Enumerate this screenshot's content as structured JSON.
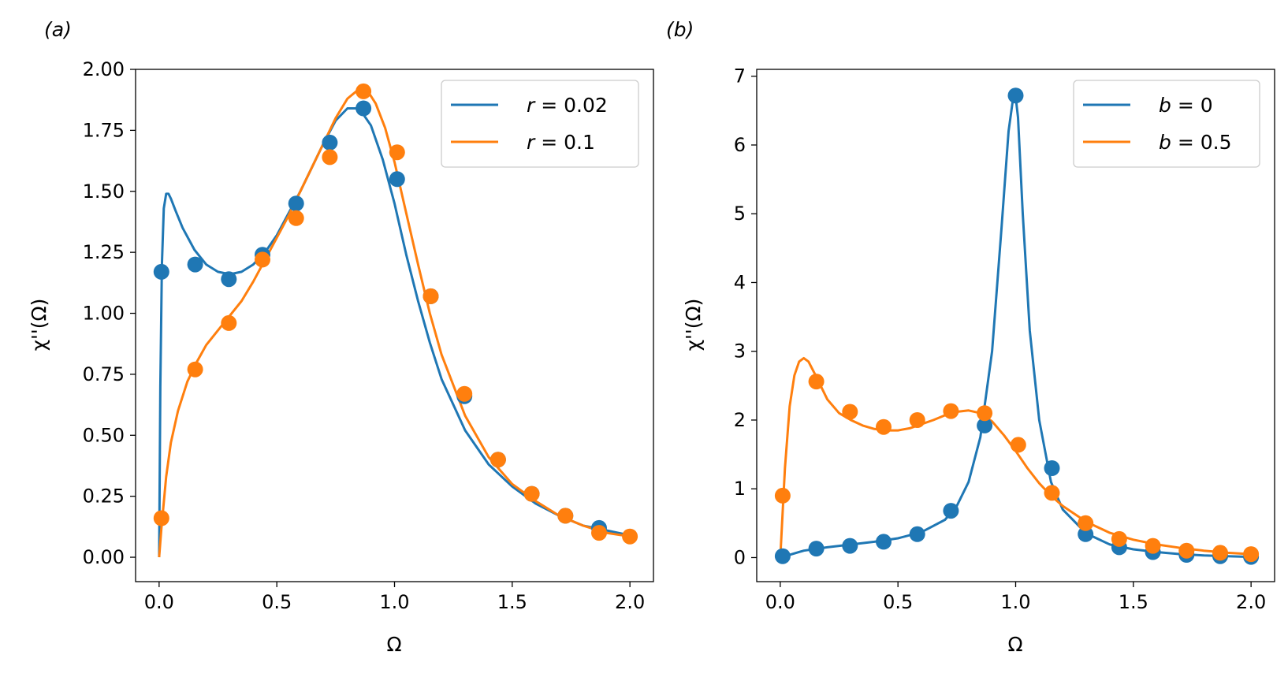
{
  "figure": {
    "chart_data": [
      {
        "panel_label": "(a)",
        "type": "line+scatter",
        "xlabel": "Ω",
        "ylabel": "χ''(Ω)",
        "xlim": [
          -0.1,
          2.1
        ],
        "ylim": [
          -0.1,
          2.0
        ],
        "xticks": [
          0.0,
          0.5,
          1.0,
          1.5,
          2.0
        ],
        "xtick_labels": [
          "0.0",
          "0.5",
          "1.0",
          "1.5",
          "2.0"
        ],
        "yticks": [
          0.0,
          0.25,
          0.5,
          0.75,
          1.0,
          1.25,
          1.5,
          1.75,
          2.0
        ],
        "ytick_labels": [
          "0.00",
          "0.25",
          "0.50",
          "0.75",
          "1.00",
          "1.25",
          "1.50",
          "1.75",
          "2.00"
        ],
        "legend_position": "top-right",
        "series": [
          {
            "name": "r = 0.02",
            "legend_var": "r",
            "legend_val": "0.02",
            "color": "#1f77b4",
            "line": {
              "x": [
                0.0,
                0.005,
                0.012,
                0.02,
                0.03,
                0.04,
                0.05,
                0.07,
                0.1,
                0.15,
                0.2,
                0.25,
                0.3,
                0.35,
                0.4,
                0.45,
                0.5,
                0.55,
                0.6,
                0.65,
                0.7,
                0.75,
                0.8,
                0.85,
                0.9,
                0.95,
                1.0,
                1.05,
                1.1,
                1.15,
                1.2,
                1.3,
                1.4,
                1.5,
                1.6,
                1.7,
                1.8,
                1.9,
                2.0
              ],
              "y": [
                0.0,
                0.7,
                1.2,
                1.43,
                1.49,
                1.49,
                1.47,
                1.42,
                1.35,
                1.26,
                1.2,
                1.17,
                1.16,
                1.17,
                1.2,
                1.25,
                1.32,
                1.41,
                1.5,
                1.6,
                1.7,
                1.79,
                1.84,
                1.84,
                1.77,
                1.63,
                1.45,
                1.24,
                1.05,
                0.88,
                0.73,
                0.52,
                0.38,
                0.29,
                0.22,
                0.17,
                0.13,
                0.11,
                0.09
              ]
            },
            "points": {
              "x": [
                0.01,
                0.153,
                0.296,
                0.439,
                0.582,
                0.725,
                0.868,
                1.011,
                1.154,
                1.297,
                1.44,
                1.583,
                1.726,
                1.869
              ],
              "y": [
                1.17,
                1.2,
                1.14,
                1.24,
                1.45,
                1.7,
                1.84,
                1.55,
                1.07,
                0.66,
                0.4,
                0.26,
                0.17,
                0.12
              ]
            }
          },
          {
            "name": "r = 0.1",
            "legend_var": "r",
            "legend_val": "0.1",
            "color": "#ff7f0e",
            "line": {
              "x": [
                0.0,
                0.01,
                0.03,
                0.05,
                0.08,
                0.12,
                0.16,
                0.2,
                0.25,
                0.3,
                0.35,
                0.4,
                0.45,
                0.5,
                0.55,
                0.6,
                0.65,
                0.7,
                0.75,
                0.8,
                0.85,
                0.88,
                0.92,
                0.96,
                1.0,
                1.05,
                1.1,
                1.15,
                1.2,
                1.3,
                1.4,
                1.5,
                1.6,
                1.7,
                1.8,
                1.9,
                2.0
              ],
              "y": [
                0.0,
                0.12,
                0.33,
                0.47,
                0.6,
                0.72,
                0.8,
                0.87,
                0.93,
                0.99,
                1.05,
                1.13,
                1.22,
                1.31,
                1.4,
                1.5,
                1.6,
                1.7,
                1.8,
                1.88,
                1.92,
                1.92,
                1.86,
                1.76,
                1.62,
                1.41,
                1.2,
                1.0,
                0.83,
                0.58,
                0.41,
                0.3,
                0.23,
                0.17,
                0.13,
                0.1,
                0.085
              ]
            },
            "points": {
              "x": [
                0.01,
                0.153,
                0.296,
                0.439,
                0.582,
                0.725,
                0.868,
                1.011,
                1.154,
                1.297,
                1.44,
                1.583,
                1.726,
                1.869,
                2.0
              ],
              "y": [
                0.16,
                0.77,
                0.96,
                1.22,
                1.39,
                1.64,
                1.91,
                1.66,
                1.07,
                0.67,
                0.4,
                0.26,
                0.17,
                0.1,
                0.085
              ]
            }
          }
        ]
      },
      {
        "panel_label": "(b)",
        "type": "line+scatter",
        "xlabel": "Ω",
        "ylabel": "χ''(Ω)",
        "xlim": [
          -0.1,
          2.1
        ],
        "ylim": [
          -0.35,
          7.1
        ],
        "xticks": [
          0.0,
          0.5,
          1.0,
          1.5,
          2.0
        ],
        "xtick_labels": [
          "0.0",
          "0.5",
          "1.0",
          "1.5",
          "2.0"
        ],
        "yticks": [
          0,
          1,
          2,
          3,
          4,
          5,
          6,
          7
        ],
        "ytick_labels": [
          "0",
          "1",
          "2",
          "3",
          "4",
          "5",
          "6",
          "7"
        ],
        "legend_position": "top-right",
        "series": [
          {
            "name": "b = 0",
            "legend_var": "b",
            "legend_val": "0",
            "color": "#1f77b4",
            "line": {
              "x": [
                0.0,
                0.1,
                0.2,
                0.3,
                0.4,
                0.5,
                0.6,
                0.7,
                0.75,
                0.8,
                0.85,
                0.9,
                0.94,
                0.97,
                0.99,
                1.0,
                1.01,
                1.03,
                1.06,
                1.1,
                1.15,
                1.2,
                1.3,
                1.4,
                1.5,
                1.6,
                1.7,
                1.8,
                1.9,
                2.0
              ],
              "y": [
                0.0,
                0.1,
                0.15,
                0.19,
                0.23,
                0.28,
                0.37,
                0.55,
                0.75,
                1.1,
                1.75,
                3.0,
                4.8,
                6.2,
                6.7,
                6.7,
                6.4,
                5.0,
                3.3,
                2.0,
                1.1,
                0.7,
                0.35,
                0.19,
                0.12,
                0.08,
                0.05,
                0.03,
                0.02,
                0.01
              ]
            },
            "points": {
              "x": [
                0.01,
                0.153,
                0.296,
                0.439,
                0.582,
                0.725,
                0.868,
                1.0,
                1.154,
                1.297,
                1.44,
                1.583,
                1.726,
                1.869,
                2.0
              ],
              "y": [
                0.02,
                0.13,
                0.17,
                0.23,
                0.34,
                0.68,
                1.92,
                6.72,
                1.3,
                0.34,
                0.15,
                0.08,
                0.04,
                0.02,
                0.01
              ]
            }
          },
          {
            "name": "b = 0.5",
            "legend_var": "b",
            "legend_val": "0.5",
            "color": "#ff7f0e",
            "line": {
              "x": [
                0.0,
                0.02,
                0.04,
                0.06,
                0.08,
                0.1,
                0.12,
                0.15,
                0.2,
                0.25,
                0.3,
                0.35,
                0.4,
                0.45,
                0.5,
                0.55,
                0.6,
                0.65,
                0.7,
                0.75,
                0.8,
                0.85,
                0.9,
                0.95,
                1.0,
                1.05,
                1.1,
                1.15,
                1.2,
                1.3,
                1.4,
                1.5,
                1.6,
                1.7,
                1.8,
                1.9,
                2.0
              ],
              "y": [
                0.0,
                1.3,
                2.2,
                2.65,
                2.85,
                2.9,
                2.85,
                2.65,
                2.3,
                2.1,
                2.0,
                1.92,
                1.87,
                1.85,
                1.85,
                1.88,
                1.94,
                2.0,
                2.07,
                2.12,
                2.14,
                2.1,
                1.98,
                1.78,
                1.55,
                1.3,
                1.08,
                0.9,
                0.75,
                0.52,
                0.36,
                0.26,
                0.19,
                0.14,
                0.1,
                0.07,
                0.05
              ]
            },
            "points": {
              "x": [
                0.01,
                0.153,
                0.296,
                0.439,
                0.582,
                0.725,
                0.868,
                1.011,
                1.154,
                1.297,
                1.44,
                1.583,
                1.726,
                1.869,
                2.0
              ],
              "y": [
                0.9,
                2.56,
                2.12,
                1.9,
                2.0,
                2.13,
                2.1,
                1.64,
                0.94,
                0.5,
                0.27,
                0.17,
                0.1,
                0.07,
                0.05
              ]
            }
          }
        ]
      }
    ]
  }
}
